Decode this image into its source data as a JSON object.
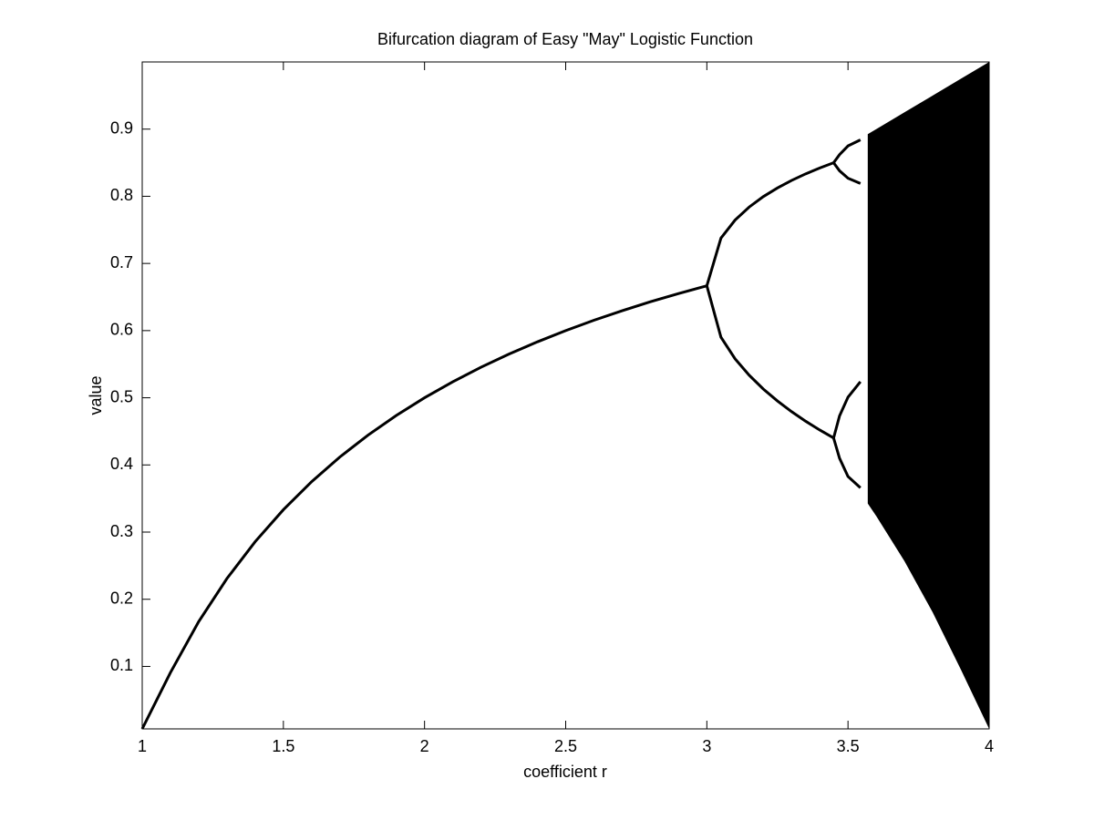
{
  "chart_data": {
    "type": "line",
    "title": "Bifurcation diagram of Easy \"May\" Logistic Function",
    "xlabel": "coefficient r",
    "ylabel": "value",
    "xlim": [
      1,
      4
    ],
    "ylim": [
      0.007,
      1
    ],
    "xticks": [
      1,
      1.5,
      2,
      2.5,
      3,
      3.5,
      4
    ],
    "yticks": [
      0.1,
      0.2,
      0.3,
      0.4,
      0.5,
      0.6,
      0.7,
      0.8,
      0.9
    ],
    "grid": false,
    "color": "#000000",
    "series": [
      {
        "x": [
          1,
          1.1,
          1.2,
          1.3,
          1.4,
          1.5,
          1.6,
          1.7,
          1.8,
          1.9,
          2.0,
          2.1,
          2.2,
          2.3,
          2.4,
          2.5,
          2.6,
          2.7,
          2.8,
          2.9,
          3.0
        ],
        "values": [
          0.007,
          0.0909,
          0.1667,
          0.2308,
          0.2857,
          0.3333,
          0.375,
          0.4118,
          0.4444,
          0.4737,
          0.5,
          0.5238,
          0.5455,
          0.5652,
          0.5833,
          0.6,
          0.6154,
          0.6296,
          0.6429,
          0.6552,
          0.6667
        ]
      },
      {
        "x": [
          3.0,
          3.05,
          3.1,
          3.15,
          3.2,
          3.25,
          3.3,
          3.35,
          3.4,
          3.449
        ],
        "values": [
          0.6667,
          0.7377,
          0.7646,
          0.784,
          0.7995,
          0.8124,
          0.8236,
          0.8334,
          0.8421,
          0.8499
        ]
      },
      {
        "x": [
          3.0,
          3.05,
          3.1,
          3.15,
          3.2,
          3.25,
          3.3,
          3.35,
          3.4,
          3.449
        ],
        "values": [
          0.6667,
          0.5902,
          0.558,
          0.5335,
          0.513,
          0.4953,
          0.4794,
          0.4651,
          0.452,
          0.4401
        ]
      },
      {
        "x": [
          3.449,
          3.47,
          3.5,
          3.544
        ],
        "values": [
          0.8499,
          0.862,
          0.875,
          0.884
        ]
      },
      {
        "x": [
          3.449,
          3.47,
          3.5,
          3.544
        ],
        "values": [
          0.8499,
          0.838,
          0.8269,
          0.819
        ]
      },
      {
        "x": [
          3.449,
          3.47,
          3.5,
          3.544
        ],
        "values": [
          0.4401,
          0.473,
          0.5009,
          0.524
        ]
      },
      {
        "x": [
          3.449,
          3.47,
          3.5,
          3.544
        ],
        "values": [
          0.4401,
          0.41,
          0.3828,
          0.366
        ]
      }
    ],
    "band": {
      "x": [
        3.57,
        3.6,
        3.7,
        3.8,
        3.9,
        4.0
      ],
      "upper": [
        0.8925,
        0.9,
        0.925,
        0.95,
        0.975,
        1.0
      ],
      "lower": [
        0.3425,
        0.324,
        0.2567,
        0.1805,
        0.0951,
        0.007
      ]
    }
  }
}
